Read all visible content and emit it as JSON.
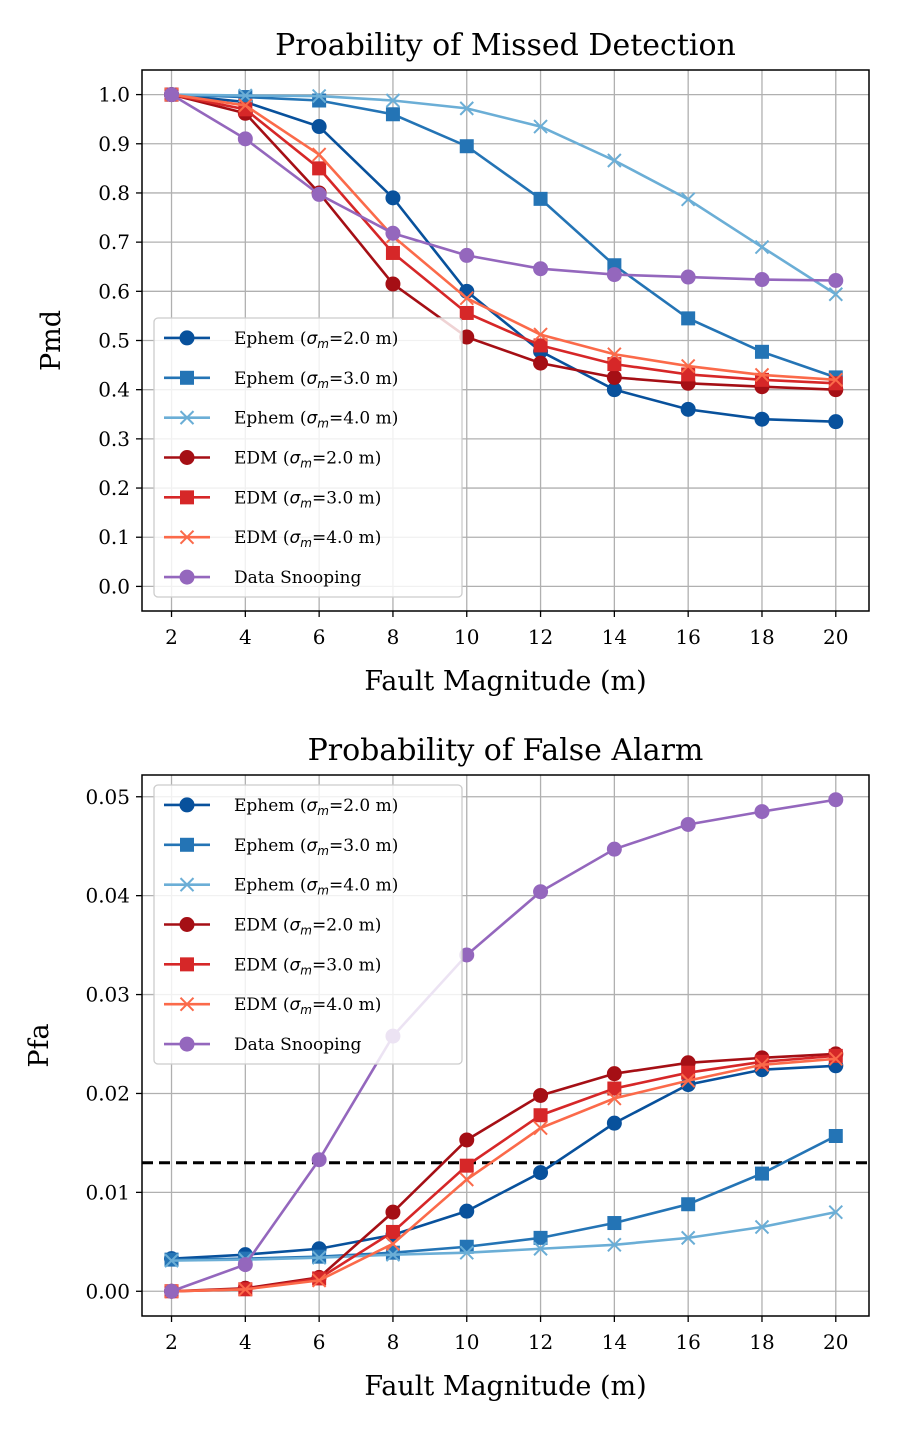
{
  "chart_data": [
    {
      "type": "line",
      "title": "Proability of Missed Detection",
      "xlabel": "Fault Magnitude (m)",
      "ylabel": "Pmd",
      "x": [
        2,
        4,
        6,
        8,
        10,
        12,
        14,
        16,
        18,
        20
      ],
      "xlim": [
        1.2,
        20.9
      ],
      "ylim": [
        -0.05,
        1.05
      ],
      "xticks": [
        "2",
        "4",
        "6",
        "8",
        "10",
        "12",
        "14",
        "16",
        "18",
        "20"
      ],
      "yticks": [
        "0.0",
        "0.1",
        "0.2",
        "0.3",
        "0.4",
        "0.5",
        "0.6",
        "0.7",
        "0.8",
        "0.9",
        "1.0"
      ],
      "grid": true,
      "legend_position": "lower-left",
      "series": [
        {
          "name": "Ephem (",
          "sigma_label": "2.0 m)",
          "color": "#08519c",
          "marker": "circle",
          "values": [
            1.0,
            0.985,
            0.935,
            0.79,
            0.6,
            0.478,
            0.4,
            0.36,
            0.34,
            0.335
          ]
        },
        {
          "name": "Ephem (",
          "sigma_label": "3.0 m)",
          "color": "#2474b5",
          "marker": "square",
          "values": [
            1.0,
            0.995,
            0.988,
            0.96,
            0.895,
            0.788,
            0.653,
            0.545,
            0.477,
            0.425
          ]
        },
        {
          "name": "Ephem (",
          "sigma_label": "4.0 m)",
          "color": "#6baed6",
          "marker": "x",
          "values": [
            1.0,
            0.998,
            0.997,
            0.988,
            0.972,
            0.935,
            0.866,
            0.787,
            0.69,
            0.594
          ]
        },
        {
          "name": "EDM (",
          "sigma_label": "2.0 m)",
          "color": "#a50f15",
          "marker": "circle",
          "values": [
            1.0,
            0.962,
            0.8,
            0.615,
            0.507,
            0.454,
            0.425,
            0.413,
            0.406,
            0.4
          ]
        },
        {
          "name": "EDM (",
          "sigma_label": "3.0 m)",
          "color": "#d62728",
          "marker": "square",
          "values": [
            1.0,
            0.97,
            0.85,
            0.678,
            0.556,
            0.49,
            0.452,
            0.431,
            0.42,
            0.413
          ]
        },
        {
          "name": "EDM (",
          "sigma_label": "4.0 m)",
          "color": "#fb6a4a",
          "marker": "x",
          "values": [
            1.0,
            0.978,
            0.878,
            0.712,
            0.586,
            0.512,
            0.472,
            0.448,
            0.43,
            0.42
          ]
        },
        {
          "name": "Data Snooping",
          "sigma_label": "",
          "color": "#9467bd",
          "marker": "circle",
          "values": [
            1.0,
            0.91,
            0.797,
            0.718,
            0.673,
            0.646,
            0.634,
            0.629,
            0.624,
            0.622
          ]
        }
      ]
    },
    {
      "type": "line",
      "title": "Probability of False Alarm",
      "xlabel": "Fault Magnitude (m)",
      "ylabel": "Pfa",
      "x": [
        2,
        4,
        6,
        8,
        10,
        12,
        14,
        16,
        18,
        20
      ],
      "xlim": [
        1.2,
        20.9
      ],
      "ylim": [
        -0.0025,
        0.0522
      ],
      "xticks": [
        "2",
        "4",
        "6",
        "8",
        "10",
        "12",
        "14",
        "16",
        "18",
        "20"
      ],
      "yticks": [
        "0.00",
        "0.01",
        "0.02",
        "0.03",
        "0.04",
        "0.05"
      ],
      "grid": true,
      "legend_position": "upper-left",
      "threshold": 0.013,
      "series": [
        {
          "name": "Ephem (",
          "sigma_label": "2.0 m)",
          "color": "#08519c",
          "marker": "circle",
          "values": [
            0.0033,
            0.0037,
            0.0043,
            0.0057,
            0.0081,
            0.012,
            0.017,
            0.0209,
            0.0224,
            0.0228
          ]
        },
        {
          "name": "Ephem (",
          "sigma_label": "3.0 m)",
          "color": "#2474b5",
          "marker": "square",
          "values": [
            0.0032,
            0.0033,
            0.0035,
            0.0039,
            0.0045,
            0.0054,
            0.0069,
            0.0088,
            0.0119,
            0.0157
          ]
        },
        {
          "name": "Ephem (",
          "sigma_label": "4.0 m)",
          "color": "#6baed6",
          "marker": "x",
          "values": [
            0.0031,
            0.0032,
            0.0034,
            0.0037,
            0.0039,
            0.0043,
            0.0047,
            0.0054,
            0.0065,
            0.008
          ]
        },
        {
          "name": "EDM (",
          "sigma_label": "2.0 m)",
          "color": "#a50f15",
          "marker": "circle",
          "values": [
            0.0,
            0.0003,
            0.0014,
            0.008,
            0.0153,
            0.0198,
            0.022,
            0.0231,
            0.0236,
            0.024
          ]
        },
        {
          "name": "EDM (",
          "sigma_label": "3.0 m)",
          "color": "#d62728",
          "marker": "square",
          "values": [
            0.0,
            0.0002,
            0.0013,
            0.006,
            0.0127,
            0.0178,
            0.0205,
            0.0221,
            0.0232,
            0.0238
          ]
        },
        {
          "name": "EDM (",
          "sigma_label": "4.0 m)",
          "color": "#fb6a4a",
          "marker": "x",
          "values": [
            0.0,
            0.0002,
            0.0011,
            0.0048,
            0.0113,
            0.0165,
            0.0195,
            0.0213,
            0.0229,
            0.0235
          ]
        },
        {
          "name": "Data Snooping",
          "sigma_label": "",
          "color": "#9467bd",
          "marker": "circle",
          "values": [
            0.0,
            0.0027,
            0.0133,
            0.0258,
            0.034,
            0.0404,
            0.0447,
            0.0472,
            0.0485,
            0.0497
          ]
        }
      ]
    }
  ]
}
